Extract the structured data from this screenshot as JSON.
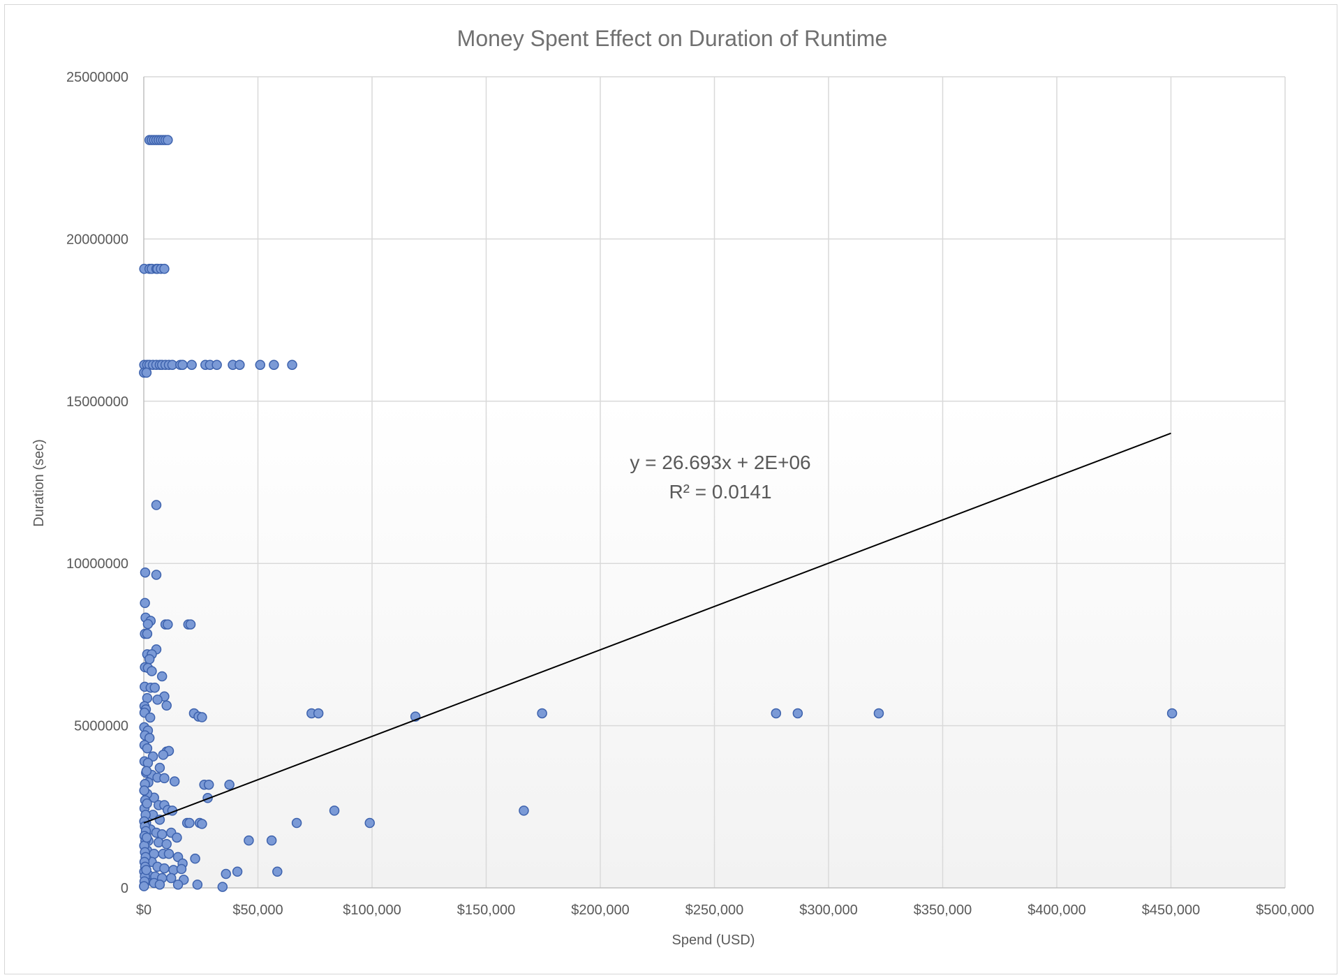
{
  "chart_data": {
    "type": "scatter",
    "title": "Money Spent Effect on Duration of Runtime",
    "xlabel": "Spend (USD)",
    "ylabel": "Duration (sec)",
    "xlim": [
      0,
      500000
    ],
    "ylim": [
      0,
      25000000
    ],
    "x_ticks": [
      0,
      50000,
      100000,
      150000,
      200000,
      250000,
      300000,
      350000,
      400000,
      450000,
      500000
    ],
    "x_tick_labels": [
      "$0",
      "$50,000",
      "$100,000",
      "$150,000",
      "$200,000",
      "$250,000",
      "$300,000",
      "$350,000",
      "$400,000",
      "$450,000",
      "$500,000"
    ],
    "y_ticks": [
      0,
      5000000,
      10000000,
      15000000,
      20000000,
      25000000
    ],
    "y_tick_labels": [
      "0",
      "5000000",
      "10000000",
      "15000000",
      "20000000",
      "25000000"
    ],
    "grid": true,
    "marker_color": "#7b9ad6",
    "marker_edge_color": "#3d62ad",
    "trendline": {
      "type": "linear",
      "slope": 26.693,
      "intercept": 2000000,
      "x_range": [
        0,
        450000
      ],
      "equation": "y = 26.693x + 2E+06",
      "r_squared": "R² = 0.0141",
      "color": "#000000"
    },
    "series": [
      {
        "points": [
          [
            2500,
            23050000
          ],
          [
            3500,
            23050000
          ],
          [
            4500,
            23050000
          ],
          [
            5500,
            23050000
          ],
          [
            6500,
            23050000
          ],
          [
            7500,
            23050000
          ],
          [
            8500,
            23050000
          ],
          [
            9500,
            23050000
          ],
          [
            10500,
            23050000
          ],
          [
            200,
            19080000
          ],
          [
            2500,
            19080000
          ],
          [
            3500,
            19080000
          ],
          [
            5500,
            19080000
          ],
          [
            6000,
            19080000
          ],
          [
            7500,
            19080000
          ],
          [
            9000,
            19080000
          ],
          [
            200,
            16120000
          ],
          [
            1500,
            16120000
          ],
          [
            2500,
            16120000
          ],
          [
            4000,
            16120000
          ],
          [
            5500,
            16120000
          ],
          [
            7000,
            16120000
          ],
          [
            8000,
            16120000
          ],
          [
            9500,
            16120000
          ],
          [
            11000,
            16120000
          ],
          [
            12500,
            16120000
          ],
          [
            16000,
            16120000
          ],
          [
            17000,
            16120000
          ],
          [
            21000,
            16120000
          ],
          [
            27000,
            16120000
          ],
          [
            29000,
            16120000
          ],
          [
            32000,
            16120000
          ],
          [
            39000,
            16120000
          ],
          [
            42000,
            16120000
          ],
          [
            51000,
            16120000
          ],
          [
            57000,
            16120000
          ],
          [
            65000,
            16120000
          ],
          [
            100,
            15880000
          ],
          [
            1200,
            15880000
          ],
          [
            5500,
            11800000
          ],
          [
            600,
            9720000
          ],
          [
            5500,
            9650000
          ],
          [
            500,
            8780000
          ],
          [
            800,
            8330000
          ],
          [
            3000,
            8230000
          ],
          [
            1800,
            8130000
          ],
          [
            9500,
            8120000
          ],
          [
            10500,
            8120000
          ],
          [
            19500,
            8120000
          ],
          [
            20500,
            8120000
          ],
          [
            500,
            7830000
          ],
          [
            1500,
            7830000
          ],
          [
            5500,
            7350000
          ],
          [
            1500,
            7200000
          ],
          [
            3500,
            7200000
          ],
          [
            2500,
            7050000
          ],
          [
            500,
            6800000
          ],
          [
            1800,
            6780000
          ],
          [
            3500,
            6680000
          ],
          [
            8000,
            6520000
          ],
          [
            400,
            6200000
          ],
          [
            3000,
            6170000
          ],
          [
            4800,
            6170000
          ],
          [
            9000,
            5900000
          ],
          [
            1500,
            5850000
          ],
          [
            6000,
            5800000
          ],
          [
            10000,
            5620000
          ],
          [
            300,
            5600000
          ],
          [
            900,
            5500000
          ],
          [
            300,
            5400000
          ],
          [
            2800,
            5250000
          ],
          [
            22000,
            5380000
          ],
          [
            24000,
            5280000
          ],
          [
            25500,
            5260000
          ],
          [
            73500,
            5380000
          ],
          [
            76500,
            5380000
          ],
          [
            119000,
            5280000
          ],
          [
            174500,
            5380000
          ],
          [
            277000,
            5380000
          ],
          [
            286500,
            5380000
          ],
          [
            322000,
            5380000
          ],
          [
            450500,
            5380000
          ],
          [
            200,
            4950000
          ],
          [
            1800,
            4850000
          ],
          [
            500,
            4700000
          ],
          [
            2500,
            4620000
          ],
          [
            300,
            4400000
          ],
          [
            1500,
            4300000
          ],
          [
            10000,
            4200000
          ],
          [
            11000,
            4220000
          ],
          [
            8500,
            4100000
          ],
          [
            4000,
            4050000
          ],
          [
            300,
            3900000
          ],
          [
            1800,
            3850000
          ],
          [
            7000,
            3700000
          ],
          [
            1000,
            3550000
          ],
          [
            3500,
            3480000
          ],
          [
            6000,
            3400000
          ],
          [
            9000,
            3380000
          ],
          [
            13500,
            3280000
          ],
          [
            2000,
            3250000
          ],
          [
            500,
            3200000
          ],
          [
            26500,
            3180000
          ],
          [
            28500,
            3180000
          ],
          [
            37500,
            3180000
          ],
          [
            28000,
            2770000
          ],
          [
            4500,
            2780000
          ],
          [
            1500,
            2900000
          ],
          [
            6500,
            2550000
          ],
          [
            9000,
            2550000
          ],
          [
            10500,
            2400000
          ],
          [
            12500,
            2380000
          ],
          [
            4000,
            2250000
          ],
          [
            7000,
            2100000
          ],
          [
            1000,
            2000000
          ],
          [
            83500,
            2380000
          ],
          [
            166500,
            2380000
          ],
          [
            19000,
            2000000
          ],
          [
            20000,
            2000000
          ],
          [
            24500,
            2000000
          ],
          [
            25500,
            1970000
          ],
          [
            67000,
            2000000
          ],
          [
            99000,
            2000000
          ],
          [
            3000,
            1800000
          ],
          [
            5500,
            1700000
          ],
          [
            8000,
            1650000
          ],
          [
            12000,
            1700000
          ],
          [
            14500,
            1550000
          ],
          [
            2000,
            1450000
          ],
          [
            6500,
            1400000
          ],
          [
            10000,
            1350000
          ],
          [
            46000,
            1460000
          ],
          [
            56000,
            1460000
          ],
          [
            1500,
            1150000
          ],
          [
            4500,
            1050000
          ],
          [
            8500,
            1050000
          ],
          [
            11000,
            1050000
          ],
          [
            15000,
            950000
          ],
          [
            17000,
            750000
          ],
          [
            22500,
            900000
          ],
          [
            3500,
            800000
          ],
          [
            6000,
            650000
          ],
          [
            9000,
            600000
          ],
          [
            13000,
            550000
          ],
          [
            16500,
            580000
          ],
          [
            36000,
            430000
          ],
          [
            41000,
            500000
          ],
          [
            58500,
            500000
          ],
          [
            2000,
            400000
          ],
          [
            5000,
            350000
          ],
          [
            8000,
            300000
          ],
          [
            12000,
            300000
          ],
          [
            17500,
            250000
          ],
          [
            1000,
            200000
          ],
          [
            4500,
            150000
          ],
          [
            7000,
            100000
          ],
          [
            15000,
            100000
          ],
          [
            23500,
            100000
          ],
          [
            34500,
            30000
          ],
          [
            200,
            3000000
          ],
          [
            600,
            2700000
          ],
          [
            300,
            2450000
          ],
          [
            800,
            2250000
          ],
          [
            200,
            2050000
          ],
          [
            500,
            1900000
          ],
          [
            900,
            1750000
          ],
          [
            300,
            1600000
          ],
          [
            700,
            1450000
          ],
          [
            200,
            1300000
          ],
          [
            500,
            1100000
          ],
          [
            800,
            950000
          ],
          [
            300,
            800000
          ],
          [
            600,
            650000
          ],
          [
            200,
            500000
          ],
          [
            500,
            350000
          ],
          [
            300,
            200000
          ],
          [
            100,
            50000
          ],
          [
            1200,
            3600000
          ],
          [
            1400,
            2600000
          ],
          [
            1300,
            1550000
          ],
          [
            1100,
            550000
          ]
        ]
      }
    ]
  }
}
